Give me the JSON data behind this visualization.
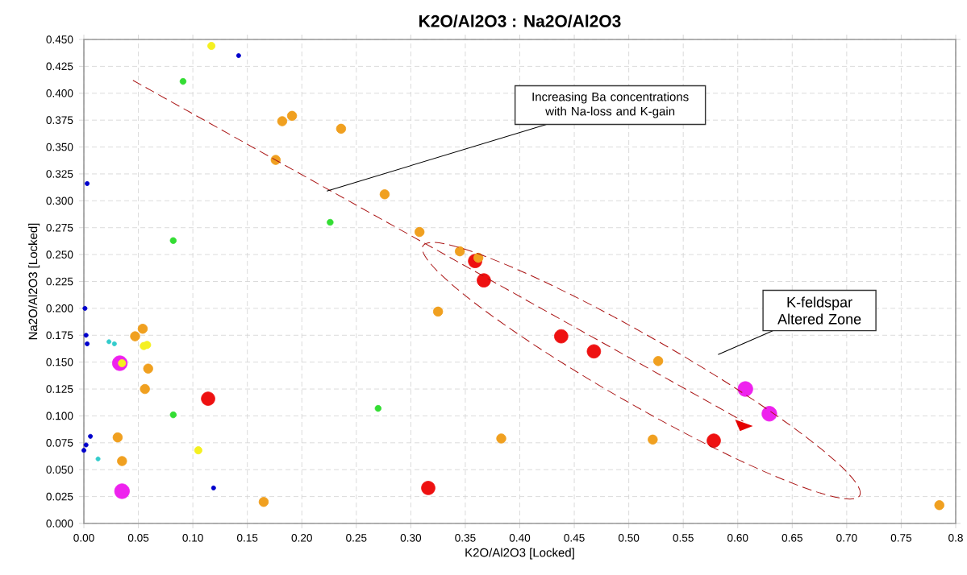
{
  "chart_data": {
    "type": "scatter",
    "title": "K2O/Al2O3 : Na2O/Al2O3",
    "xlabel": "K2O/Al2O3 [Locked]",
    "ylabel": "Na2O/Al2O3 [Locked]",
    "annotations": [
      "Increasing Ba concentrations with Na-loss and  K-gain",
      "K-feldspar Altered Zone"
    ],
    "xlim": [
      0,
      0.8
    ],
    "ylim": [
      0,
      0.45
    ],
    "xticks": [
      {
        "value": 0,
        "label": "0.00"
      },
      {
        "value": 0.05,
        "label": "0.05"
      },
      {
        "value": 0.1,
        "label": "0.10"
      },
      {
        "value": 0.15,
        "label": "0.15"
      },
      {
        "value": 0.2,
        "label": "0.20"
      },
      {
        "value": 0.25,
        "label": "0.25"
      },
      {
        "value": 0.3,
        "label": "0.30"
      },
      {
        "value": 0.35,
        "label": "0.35"
      },
      {
        "value": 0.4,
        "label": "0.40"
      },
      {
        "value": 0.45,
        "label": "0.45"
      },
      {
        "value": 0.5,
        "label": "0.50"
      },
      {
        "value": 0.55,
        "label": "0.55"
      },
      {
        "value": 0.6,
        "label": "0.60"
      },
      {
        "value": 0.65,
        "label": "0.65"
      },
      {
        "value": 0.7,
        "label": "0.70"
      },
      {
        "value": 0.75,
        "label": "0.75"
      },
      0.8
    ],
    "yticks": [
      {
        "value": 0,
        "label": "0.000"
      },
      {
        "value": 0.025,
        "label": "0.025"
      },
      {
        "value": 0.05,
        "label": "0.050"
      },
      {
        "value": 0.075,
        "label": "0.075"
      },
      {
        "value": 0.1,
        "label": "0.100"
      },
      {
        "value": 0.125,
        "label": "0.125"
      },
      {
        "value": 0.15,
        "label": "0.150"
      },
      {
        "value": 0.175,
        "label": "0.175"
      },
      {
        "value": 0.2,
        "label": "0.200"
      },
      {
        "value": 0.225,
        "label": "0.225"
      },
      {
        "value": 0.25,
        "label": "0.250"
      },
      {
        "value": 0.275,
        "label": "0.275"
      },
      {
        "value": 0.3,
        "label": "0.300"
      },
      {
        "value": 0.325,
        "label": "0.325"
      },
      {
        "value": 0.35,
        "label": "0.350"
      },
      {
        "value": 0.375,
        "label": "0.375"
      },
      {
        "value": 0.4,
        "label": "0.400"
      },
      {
        "value": 0.425,
        "label": "0.425"
      },
      {
        "value": 0.45,
        "label": "0.450"
      }
    ],
    "grid": true,
    "series": [
      {
        "color": "#ee22ee",
        "x": [
          0.033,
          0.035,
          0.607,
          0.629
        ],
        "values": [
          0.149,
          0.03,
          0.125,
          0.102
        ]
      },
      {
        "color": "#ee1111",
        "x": [
          0.359,
          0.367,
          0.438,
          0.468,
          0.578,
          0.114,
          0.316
        ],
        "values": [
          0.244,
          0.226,
          0.174,
          0.16,
          0.077,
          0.116,
          0.033
        ]
      },
      {
        "color": "#f0a020",
        "x": [
          0.182,
          0.191,
          0.176,
          0.236,
          0.276,
          0.308,
          0.345,
          0.362,
          0.325,
          0.054,
          0.047,
          0.059,
          0.056,
          0.031,
          0.035,
          0.165,
          0.383,
          0.527,
          0.522,
          0.785
        ],
        "values": [
          0.374,
          0.379,
          0.338,
          0.367,
          0.306,
          0.271,
          0.253,
          0.247,
          0.197,
          0.181,
          0.174,
          0.144,
          0.125,
          0.08,
          0.058,
          0.02,
          0.079,
          0.151,
          0.078,
          0.017
        ]
      },
      {
        "color": "#33dd33",
        "x": [
          0.091,
          0.082,
          0.226,
          0.082,
          0.27
        ],
        "values": [
          0.411,
          0.263,
          0.28,
          0.101,
          0.107
        ]
      },
      {
        "color": "#33cccc",
        "x": [
          0.023,
          0.028,
          0.013
        ],
        "values": [
          0.169,
          0.167,
          0.06
        ]
      },
      {
        "color": "#f5f020",
        "x": [
          0.117,
          0.055,
          0.058,
          0.035,
          0.105
        ],
        "values": [
          0.444,
          0.165,
          0.166,
          0.149,
          0.068
        ]
      },
      {
        "color": "#0000cc",
        "x": [
          0.142,
          0.003,
          0.001,
          0.002,
          0.003,
          0.006,
          0.002,
          0.0,
          0.119
        ],
        "values": [
          0.435,
          0.316,
          0.2,
          0.175,
          0.167,
          0.081,
          0.073,
          0.068,
          0.033
        ]
      }
    ]
  }
}
